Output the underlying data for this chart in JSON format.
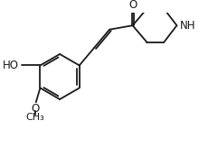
{
  "background_color": "#ffffff",
  "line_color": "#1a1a1a",
  "line_width": 1.3,
  "font_size": 8.5,
  "fig_width": 2.2,
  "fig_height": 1.85,
  "dpi": 100,
  "xlim": [
    0,
    220
  ],
  "ylim": [
    0,
    185
  ]
}
